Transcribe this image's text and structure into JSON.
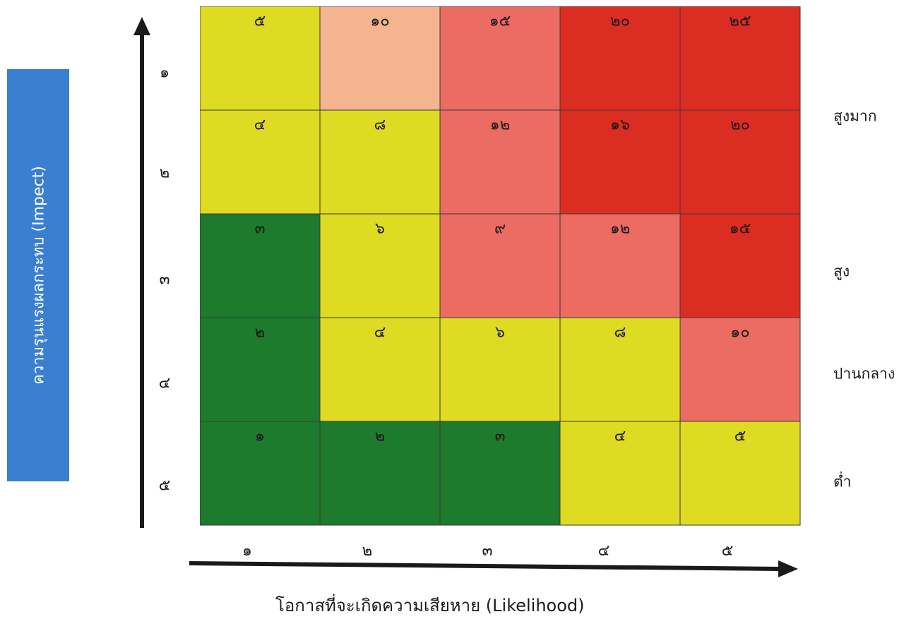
{
  "y_axis": {
    "title": "ความรุนแรงผลกระทบ    (Impect)",
    "ticks": [
      "๑",
      "๒",
      "๓",
      "๔",
      "๕"
    ]
  },
  "x_axis": {
    "title": "โอกาสที่จะเกิดความเสียหาย (Likelihood)",
    "ticks": [
      "๑",
      "๒",
      "๓",
      "๔",
      "๕"
    ]
  },
  "level_labels": [
    "สูงมาก",
    "สูง",
    "ปานกลาง",
    "ต่ำ"
  ],
  "colors": {
    "green": "#1e7a2c",
    "yellow": "#dfdb22",
    "peach": "#f3b48f",
    "pink": "#ec6b63",
    "red": "#dc2d22",
    "title_box": "#3a7fd0"
  },
  "chart_data": {
    "type": "heatmap",
    "x_categories": [
      "๑",
      "๒",
      "๓",
      "๔",
      "๕"
    ],
    "y_categories": [
      "๑",
      "๒",
      "๓",
      "๔",
      "๕"
    ],
    "cells": [
      [
        {
          "label": "๕",
          "value": 5,
          "color": "yellow"
        },
        {
          "label": "๑๐",
          "value": 10,
          "color": "peach"
        },
        {
          "label": "๑๕",
          "value": 15,
          "color": "pink"
        },
        {
          "label": "๒๐",
          "value": 20,
          "color": "red"
        },
        {
          "label": "๒๕",
          "value": 25,
          "color": "red"
        }
      ],
      [
        {
          "label": "๔",
          "value": 4,
          "color": "yellow"
        },
        {
          "label": "๘",
          "value": 8,
          "color": "yellow"
        },
        {
          "label": "๑๒",
          "value": 12,
          "color": "pink"
        },
        {
          "label": "๑๖",
          "value": 16,
          "color": "red"
        },
        {
          "label": "๒๐",
          "value": 20,
          "color": "red"
        }
      ],
      [
        {
          "label": "๓",
          "value": 3,
          "color": "green"
        },
        {
          "label": "๖",
          "value": 6,
          "color": "yellow"
        },
        {
          "label": "๙",
          "value": 9,
          "color": "pink"
        },
        {
          "label": "๑๒",
          "value": 12,
          "color": "pink"
        },
        {
          "label": "๑๕",
          "value": 15,
          "color": "red"
        }
      ],
      [
        {
          "label": "๒",
          "value": 2,
          "color": "green"
        },
        {
          "label": "๔",
          "value": 4,
          "color": "yellow"
        },
        {
          "label": "๖",
          "value": 6,
          "color": "yellow"
        },
        {
          "label": "๘",
          "value": 8,
          "color": "yellow"
        },
        {
          "label": "๑๐",
          "value": 10,
          "color": "pink"
        }
      ],
      [
        {
          "label": "๑",
          "value": 1,
          "color": "green"
        },
        {
          "label": "๒",
          "value": 2,
          "color": "green"
        },
        {
          "label": "๓",
          "value": 3,
          "color": "green"
        },
        {
          "label": "๔",
          "value": 4,
          "color": "yellow"
        },
        {
          "label": "๕",
          "value": 5,
          "color": "yellow"
        }
      ]
    ]
  }
}
